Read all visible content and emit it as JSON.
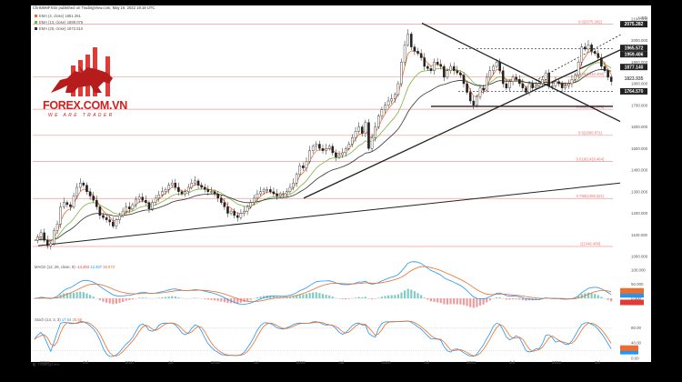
{
  "header": {
    "author_line": "ChrisWeiFXSir published on TradingView.com, May 16, 2022 19:19 UTC",
    "brand": "TradingView",
    "currency": "USD"
  },
  "legend": [
    {
      "text": "EMA (4, close)  1851.361",
      "color": "#ef6c2b"
    },
    {
      "text": "EMA (13, close)  1889.076",
      "color": "#7cb342"
    },
    {
      "text": "EMA (26, close)  1872.510",
      "color": "#333333"
    }
  ],
  "logo": {
    "name": "FOREX.COM.VN",
    "tagline": "WE ARE TRADER"
  },
  "price_axis": {
    "ticks": [
      "2100.000",
      "2000.000",
      "1900.000",
      "1800.000",
      "1700.000",
      "1600.000",
      "1500.000",
      "1400.000",
      "1300.000",
      "1200.000",
      "1100.000",
      "1000.000"
    ],
    "price_labels": [
      "2075.282",
      "1965.572",
      "1959.406",
      "1877.140",
      "1823.935",
      "1764.570"
    ]
  },
  "fib_levels": [
    "0.0(2075.282)",
    "0.236(1832.400)",
    "0.382(1681.578)",
    "0.5(1560.871)",
    "0.618(1439.464)",
    "0.786(1268.321)",
    "1(1046.400)"
  ],
  "macd": {
    "label": "MACD (12, 26, close, 9)",
    "values": [
      "-14.204",
      "12.487",
      "26.672"
    ],
    "value_colors": [
      "#e53935",
      "#2196f3",
      "#ef6c2b"
    ],
    "ticks": [
      "100.000",
      "50.000",
      "0.000"
    ]
  },
  "stoch": {
    "label": "Stoch (14, 3, 3)",
    "values": [
      "17.54",
      "26.88"
    ],
    "value_colors": [
      "#2196f3",
      "#ef6c2b"
    ],
    "ticks": [
      "80.00",
      "40.00",
      "0.00"
    ]
  },
  "time_axis": [
    "2016",
    "Jul",
    "2017",
    "Jul",
    "2018",
    "Jul",
    "2019",
    "Jul",
    "2020",
    "Jul",
    "2021",
    "Jul",
    "2022",
    "Jul"
  ],
  "chart_data": {
    "type": "candlestick",
    "weekly_closes": [
      1075,
      1090,
      1110,
      1075,
      1050,
      1060,
      1120,
      1150,
      1230,
      1250,
      1240,
      1230,
      1280,
      1320,
      1340,
      1330,
      1300,
      1280,
      1260,
      1230,
      1190,
      1180,
      1170,
      1160,
      1140,
      1170,
      1190,
      1210,
      1230,
      1220,
      1240,
      1265,
      1275,
      1260,
      1250,
      1220,
      1250,
      1270,
      1285,
      1300,
      1310,
      1330,
      1340,
      1320,
      1300,
      1290,
      1300,
      1320,
      1340,
      1350,
      1330,
      1320,
      1310,
      1300,
      1300,
      1290,
      1270,
      1250,
      1230,
      1200,
      1210,
      1190,
      1180,
      1200,
      1210,
      1230,
      1250,
      1270,
      1290,
      1300,
      1310,
      1310,
      1300,
      1290,
      1280,
      1290,
      1290,
      1300,
      1320,
      1340,
      1380,
      1420,
      1410,
      1440,
      1490,
      1510,
      1520,
      1500,
      1490,
      1500,
      1510,
      1480,
      1460,
      1470,
      1480,
      1500,
      1520,
      1550,
      1580,
      1600,
      1570,
      1620,
      1500,
      1550,
      1600,
      1650,
      1680,
      1700,
      1720,
      1730,
      1750,
      1800,
      1900,
      1980,
      2030,
      1970,
      1950,
      1940,
      1920,
      1880,
      1870,
      1860,
      1900,
      1890,
      1880,
      1830,
      1860,
      1880,
      1860,
      1850,
      1840,
      1800,
      1760,
      1720,
      1700,
      1740,
      1780,
      1770,
      1830,
      1860,
      1880,
      1900,
      1860,
      1800,
      1780,
      1810,
      1830,
      1820,
      1800,
      1780,
      1760,
      1800,
      1780,
      1790,
      1800,
      1820,
      1850,
      1790,
      1790,
      1810,
      1800,
      1780,
      1790,
      1800,
      1820,
      1840,
      1900,
      1970,
      1960,
      1980,
      1950,
      1940,
      1920,
      1880,
      1860,
      1830,
      1810
    ],
    "ema_periods": [
      4,
      13,
      26
    ],
    "ema_values": [
      1851.361,
      1889.076,
      1872.51
    ],
    "ylim": [
      1000,
      2120
    ],
    "fib_values": [
      2075.282,
      1832.4,
      1681.578,
      1560.871,
      1439.464,
      1268.321,
      1046.4
    ],
    "macd_values": [
      -14.204,
      12.487,
      26.672
    ],
    "stoch_values": [
      17.54,
      26.88
    ]
  }
}
